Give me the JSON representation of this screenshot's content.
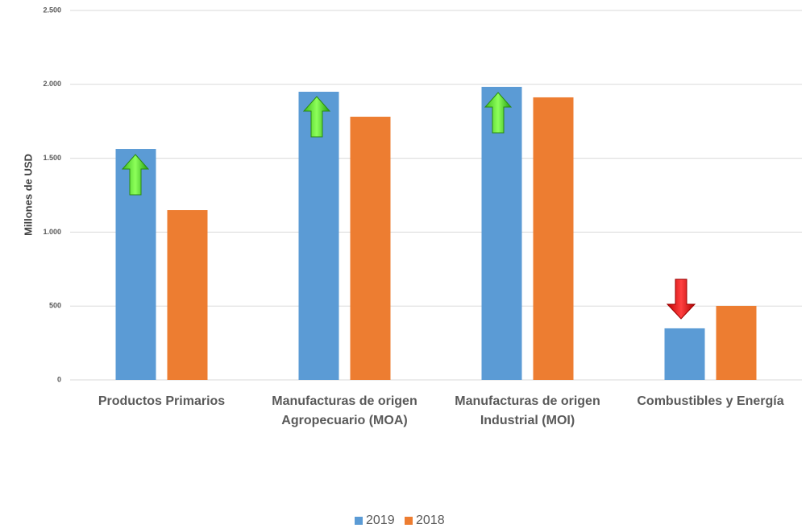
{
  "chart_data": {
    "type": "bar",
    "y_label": "Millones de USD",
    "categories": [
      "Productos Primarios",
      "Manufacturas de origen Agropecuario (MOA)",
      "Manufacturas de origen Industrial (MOI)",
      "Combustibles y Energía"
    ],
    "series": [
      {
        "name": "2019",
        "color": "#5b9bd5",
        "values": [
          1563,
          1950,
          1983,
          349
        ]
      },
      {
        "name": "2018",
        "color": "#ed7d31",
        "values": [
          1149,
          1781,
          1912,
          501
        ]
      }
    ],
    "ylim": [
      0,
      2500
    ],
    "yticks": [
      0,
      500,
      {
        "value": 1000,
        "label": "1.000"
      },
      {
        "value": 1500,
        "label": "1.500"
      },
      {
        "value": 2000,
        "label": "2.000"
      },
      {
        "value": 2500,
        "label": "2.500"
      }
    ],
    "grid": true,
    "legend": "bottom"
  }
}
